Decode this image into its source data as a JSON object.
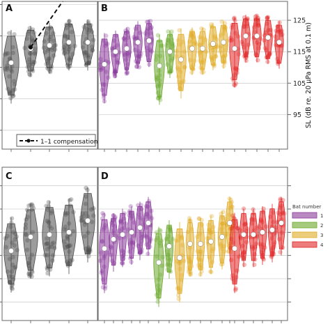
{
  "figure": {
    "y_axis_label": "SL (dB re. 20 µPa RMS at 0.1 m)",
    "legend_title": "Bat number"
  },
  "chart_data": [
    {
      "panel": "A",
      "type": "violin",
      "label": "A",
      "ylim": [
        84,
        131
      ],
      "grid": true,
      "medians": [
        111.5,
        116,
        117,
        118,
        118
      ],
      "color": "#4a4a4a",
      "line_label": "1–1 compensation",
      "line_start": [
        2,
        116
      ],
      "legend_position": "bottom-left"
    },
    {
      "panel": "B",
      "type": "violin",
      "label": "B",
      "ylim": [
        84,
        131
      ],
      "yticks": [
        95,
        105,
        115,
        125
      ],
      "ytick_labels": [
        "95",
        "105",
        "115",
        "125"
      ],
      "y_axis_side": "right",
      "grid": true,
      "series": [
        {
          "name": "1",
          "medians": [
            111,
            115,
            116,
            118,
            118.5
          ]
        },
        {
          "name": "2",
          "medians": [
            110.5,
            115
          ]
        },
        {
          "name": "3",
          "medians": [
            112.5,
            116,
            116,
            117.5,
            118
          ]
        },
        {
          "name": "4",
          "medians": [
            116,
            120,
            120,
            119.5,
            118
          ]
        }
      ]
    },
    {
      "panel": "C",
      "type": "violin",
      "label": "C",
      "grid": true,
      "medians": [
        115,
        118,
        118.5,
        119,
        121.5
      ],
      "color": "#4a4a4a"
    },
    {
      "panel": "D",
      "type": "violin",
      "label": "D",
      "grid": true,
      "series": [
        {
          "name": "1",
          "medians": [
            115.5,
            117.5,
            118.5,
            119,
            120,
            121
          ]
        },
        {
          "name": "2",
          "medians": [
            112.5,
            116
          ]
        },
        {
          "name": "3",
          "medians": [
            113.5,
            116.5,
            116.5,
            117,
            118,
            121
          ]
        },
        {
          "name": "4",
          "medians": [
            115.5,
            118.5,
            118.5,
            119,
            119.5,
            121
          ]
        }
      ],
      "legend_position": "right"
    }
  ],
  "legend": {
    "title": "Bat number",
    "items": [
      {
        "label": "1",
        "color": "#8a3a9a"
      },
      {
        "label": "2",
        "color": "#6aa82a"
      },
      {
        "label": "3",
        "color": "#e0ac25"
      },
      {
        "label": "4",
        "color": "#e12424"
      }
    ]
  },
  "colors": {
    "1": "#8a3a9a",
    "2": "#6aa82a",
    "3": "#e0ac25",
    "4": "#e12424",
    "grey": "#4a4a4a",
    "black": "#111111"
  }
}
